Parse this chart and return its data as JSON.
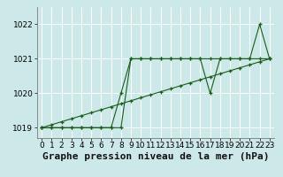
{
  "title": "Graphe pression niveau de la mer (hPa)",
  "xlim": [
    -0.5,
    23.5
  ],
  "ylim": [
    1018.7,
    1022.5
  ],
  "yticks": [
    1019,
    1020,
    1021,
    1022
  ],
  "xticks": [
    0,
    1,
    2,
    3,
    4,
    5,
    6,
    7,
    8,
    9,
    10,
    11,
    12,
    13,
    14,
    15,
    16,
    17,
    18,
    19,
    20,
    21,
    22,
    23
  ],
  "bg_color": "#cce8e8",
  "grid_color": "#ffffff",
  "line_color": "#1a5c1a",
  "s1_y": [
    1019.0,
    1019.0,
    1019.0,
    1019.0,
    1019.0,
    1019.0,
    1019.0,
    1019.0,
    1019.0,
    1021.0,
    1021.0,
    1021.0,
    1021.0,
    1021.0,
    1021.0,
    1021.0,
    1021.0,
    1021.0,
    1021.0,
    1021.0,
    1021.0,
    1021.0,
    1021.0,
    1021.0
  ],
  "s2_y": [
    1019.0,
    1019.0,
    1019.0,
    1019.0,
    1019.0,
    1019.0,
    1019.0,
    1019.0,
    1020.0,
    1021.0,
    1021.0,
    1021.0,
    1021.0,
    1021.0,
    1021.0,
    1021.0,
    1021.0,
    1020.0,
    1021.0,
    1021.0,
    1021.0,
    1021.0,
    1022.0,
    1021.0
  ],
  "s3_y": [
    1019.0,
    1019.087,
    1019.174,
    1019.261,
    1019.348,
    1019.435,
    1019.522,
    1019.609,
    1019.696,
    1019.783,
    1019.87,
    1019.957,
    1020.043,
    1020.13,
    1020.217,
    1020.304,
    1020.391,
    1020.478,
    1020.565,
    1020.652,
    1020.739,
    1020.826,
    1020.913,
    1021.0
  ],
  "title_fontsize": 8,
  "tick_fontsize": 6.5
}
